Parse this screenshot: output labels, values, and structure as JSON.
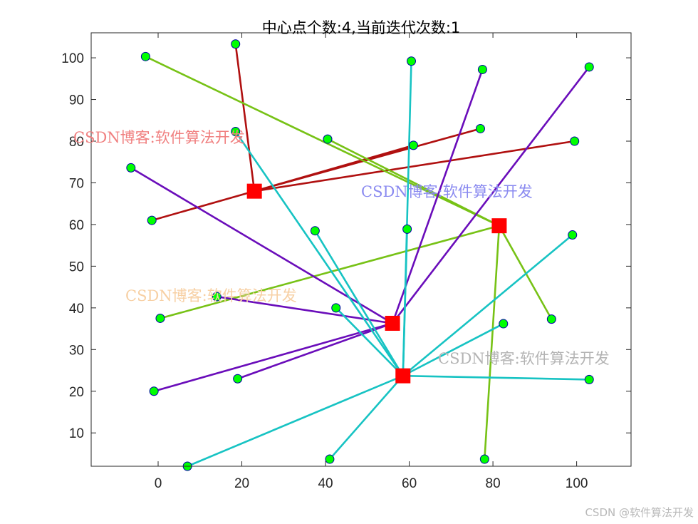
{
  "chart_data": {
    "type": "scatter",
    "title": "中心点个数:4,当前迭代次数:1",
    "xlabel": "",
    "ylabel": "",
    "xlim": [
      -16,
      113
    ],
    "ylim": [
      2,
      106
    ],
    "xticks": [
      0,
      20,
      40,
      60,
      80,
      100
    ],
    "yticks": [
      10,
      20,
      30,
      40,
      50,
      60,
      70,
      80,
      90,
      100
    ],
    "grid": false,
    "centers": [
      {
        "x": 23,
        "y": 68,
        "color": "#b01010"
      },
      {
        "x": 81.5,
        "y": 59.7,
        "color": "#77c216"
      },
      {
        "x": 56,
        "y": 36.3,
        "color": "#6a0dba"
      },
      {
        "x": 58.5,
        "y": 23.7,
        "color": "#17c3c3"
      }
    ],
    "clusters": [
      {
        "center": 0,
        "points": [
          [
            18.5,
            103.3
          ],
          [
            77,
            83.0
          ],
          [
            99.5,
            80.0
          ],
          [
            61,
            79.0
          ],
          [
            -1.5,
            61.0
          ]
        ]
      },
      {
        "center": 1,
        "points": [
          [
            -3,
            100.3
          ],
          [
            40.5,
            80.5
          ],
          [
            0.5,
            37.5
          ],
          [
            94,
            37.3
          ],
          [
            78,
            3.7
          ]
        ]
      },
      {
        "center": 2,
        "points": [
          [
            77.5,
            97.2
          ],
          [
            103,
            97.8
          ],
          [
            -6.5,
            73.6
          ],
          [
            14,
            42.7
          ],
          [
            19,
            23.0
          ],
          [
            -1,
            20.0
          ]
        ]
      },
      {
        "center": 3,
        "points": [
          [
            60.5,
            99.2
          ],
          [
            18.5,
            82.3
          ],
          [
            37.5,
            58.5
          ],
          [
            59.5,
            58.9
          ],
          [
            99,
            57.5
          ],
          [
            42.5,
            40.0
          ],
          [
            82.5,
            36.2
          ],
          [
            103,
            22.8
          ],
          [
            7,
            2.0
          ],
          [
            41,
            3.7
          ]
        ]
      }
    ],
    "point_color": "#00ff00",
    "point_edge_color": "#0000aa",
    "center_marker_color": "#ff0000",
    "watermarks": [
      {
        "text": "CSDN博客:软件算法开发",
        "color": "#f08080"
      },
      {
        "text": "CSDN博客:软件算法开发",
        "color": "#8a8af0"
      },
      {
        "text": "CSDN博客:软件算法开发",
        "color": "#f7d0a4"
      },
      {
        "text": "CSDN博客:软件算法开发",
        "color": "#b4b4b4"
      }
    ]
  },
  "footer": {
    "credit": "CSDN @软件算法开发"
  }
}
